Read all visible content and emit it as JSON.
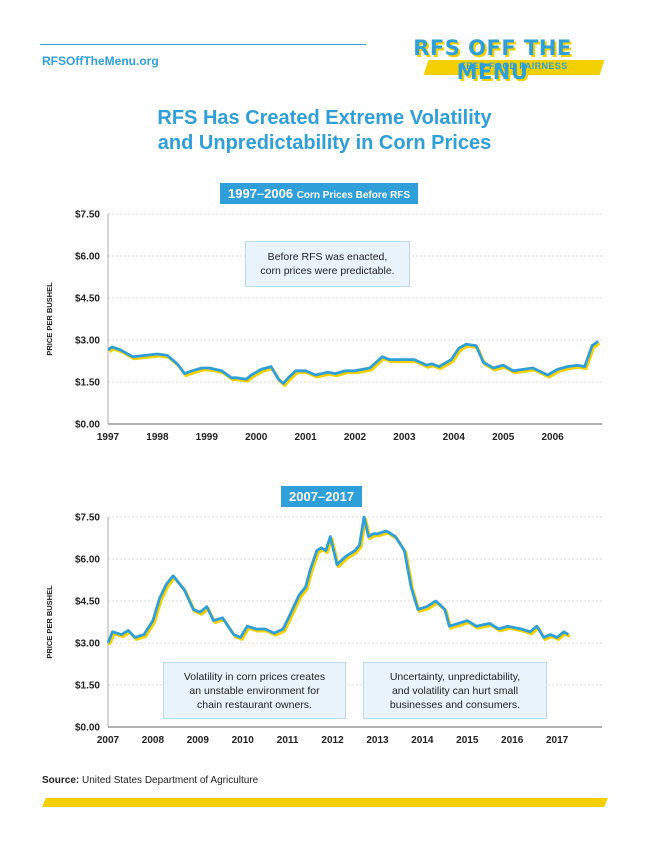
{
  "header": {
    "site_url": "RFSOffTheMenu.org",
    "logo_title": "RFS OFF THE MENU",
    "logo_subtitle": "FEED FOOD FAIRNESS",
    "colors": {
      "blue": "#2e9fd9",
      "yellow": "#f5d000"
    }
  },
  "title": {
    "line1": "RFS Has Created Extreme Volatility",
    "line2": "and Unpredictability in Corn Prices"
  },
  "source": {
    "label": "Source:",
    "text": "United States Department of Agriculture"
  },
  "chart_data": [
    {
      "type": "line",
      "title": "1997–2006",
      "subtitle": "Corn Prices Before RFS",
      "ylabel": "PRICE PER BUSHEL",
      "xlabel": "",
      "ylim": [
        0,
        7.5
      ],
      "xlim": [
        1997,
        2007
      ],
      "y_ticks": [
        0,
        1.5,
        3.0,
        4.5,
        6.0,
        7.5
      ],
      "y_tick_labels": [
        "$0.00",
        "$1.50",
        "$3.00",
        "$4.50",
        "$6.00",
        "$7.50"
      ],
      "x_ticks": [
        "1997",
        "1998",
        "1999",
        "2000",
        "2001",
        "2002",
        "2003",
        "2004",
        "2005",
        "2006"
      ],
      "grid": true,
      "annotations": [
        {
          "lines": [
            "Before RFS was enacted,",
            "corn prices were predictable."
          ]
        }
      ],
      "series_colors": [
        "#2e9fd9",
        "#f5d000"
      ],
      "x": [
        1997.0,
        1997.08,
        1997.25,
        1997.5,
        1997.75,
        1998.0,
        1998.2,
        1998.4,
        1998.55,
        1998.7,
        1998.9,
        1999.05,
        1999.3,
        1999.5,
        1999.6,
        1999.8,
        1999.9,
        2000.1,
        2000.3,
        2000.45,
        2000.55,
        2000.65,
        2000.8,
        2001.0,
        2001.2,
        2001.45,
        2001.6,
        2001.8,
        2002.0,
        2002.3,
        2002.55,
        2002.7,
        2002.85,
        2003.0,
        2003.2,
        2003.45,
        2003.55,
        2003.7,
        2003.8,
        2003.95,
        2004.1,
        2004.25,
        2004.45,
        2004.6,
        2004.8,
        2005.0,
        2005.2,
        2005.4,
        2005.6,
        2005.9,
        2006.1,
        2006.3,
        2006.5,
        2006.65,
        2006.8,
        2006.92
      ],
      "values": [
        2.65,
        2.75,
        2.65,
        2.4,
        2.45,
        2.5,
        2.45,
        2.15,
        1.8,
        1.9,
        2.0,
        2.0,
        1.9,
        1.65,
        1.65,
        1.6,
        1.75,
        1.95,
        2.05,
        1.6,
        1.45,
        1.65,
        1.9,
        1.9,
        1.75,
        1.85,
        1.8,
        1.9,
        1.9,
        2.0,
        2.4,
        2.3,
        2.3,
        2.3,
        2.3,
        2.1,
        2.15,
        2.05,
        2.15,
        2.3,
        2.7,
        2.85,
        2.8,
        2.2,
        2.0,
        2.1,
        1.9,
        1.95,
        2.0,
        1.75,
        1.95,
        2.05,
        2.1,
        2.05,
        2.8,
        2.95
      ]
    },
    {
      "type": "line",
      "title": "2007–2017",
      "ylabel": "PRICE PER BUSHEL",
      "xlabel": "",
      "ylim": [
        0,
        7.5
      ],
      "xlim": [
        2007,
        2018
      ],
      "y_ticks": [
        0,
        1.5,
        3.0,
        4.5,
        6.0,
        7.5
      ],
      "y_tick_labels": [
        "$0.00",
        "$1.50",
        "$3.00",
        "$4.50",
        "$6.00",
        "$7.50"
      ],
      "x_ticks": [
        "2007",
        "2008",
        "2009",
        "2010",
        "2011",
        "2012",
        "2013",
        "2014",
        "2015",
        "2016",
        "2017"
      ],
      "grid": true,
      "annotations": [
        {
          "lines": [
            "Volatility in corn prices creates",
            "an unstable environment for",
            "chain restaurant owners."
          ]
        },
        {
          "lines": [
            "Uncertainty, unpredictability,",
            "and volatility can hurt small",
            "businesses and consumers."
          ]
        }
      ],
      "series_colors": [
        "#2e9fd9",
        "#f5d000"
      ],
      "x": [
        2007.0,
        2007.1,
        2007.3,
        2007.45,
        2007.6,
        2007.8,
        2008.0,
        2008.15,
        2008.3,
        2008.45,
        2008.55,
        2008.7,
        2008.9,
        2009.05,
        2009.2,
        2009.35,
        2009.55,
        2009.8,
        2009.95,
        2010.1,
        2010.3,
        2010.5,
        2010.7,
        2010.9,
        2011.05,
        2011.25,
        2011.4,
        2011.5,
        2011.65,
        2011.75,
        2011.85,
        2011.95,
        2012.1,
        2012.3,
        2012.5,
        2012.6,
        2012.7,
        2012.8,
        2012.9,
        2013.0,
        2013.2,
        2013.4,
        2013.6,
        2013.75,
        2013.9,
        2014.1,
        2014.3,
        2014.5,
        2014.6,
        2014.8,
        2015.0,
        2015.2,
        2015.5,
        2015.7,
        2015.9,
        2016.2,
        2016.4,
        2016.55,
        2016.7,
        2016.85,
        2017.0,
        2017.15,
        2017.25
      ],
      "values": [
        3.0,
        3.4,
        3.3,
        3.45,
        3.2,
        3.3,
        3.8,
        4.6,
        5.1,
        5.4,
        5.2,
        4.9,
        4.2,
        4.1,
        4.3,
        3.8,
        3.9,
        3.3,
        3.2,
        3.6,
        3.5,
        3.5,
        3.35,
        3.5,
        4.0,
        4.7,
        5.0,
        5.6,
        6.3,
        6.4,
        6.3,
        6.8,
        5.8,
        6.1,
        6.3,
        6.5,
        7.5,
        6.8,
        6.9,
        6.9,
        7.0,
        6.8,
        6.3,
        5.0,
        4.2,
        4.3,
        4.5,
        4.2,
        3.6,
        3.7,
        3.8,
        3.6,
        3.7,
        3.5,
        3.6,
        3.5,
        3.4,
        3.6,
        3.2,
        3.3,
        3.2,
        3.4,
        3.3
      ]
    }
  ]
}
